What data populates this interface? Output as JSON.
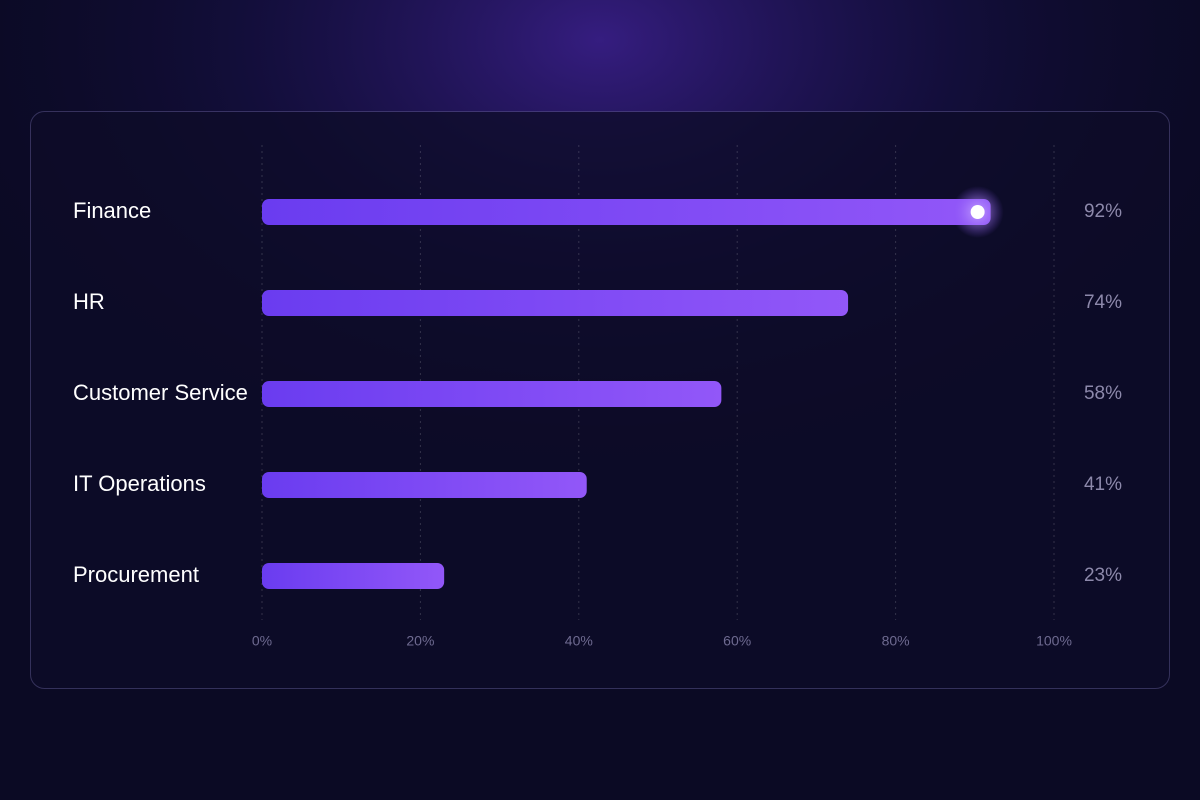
{
  "chart_data": {
    "type": "bar",
    "orientation": "horizontal",
    "categories": [
      "Finance",
      "HR",
      "Customer Service",
      "IT Operations",
      "Procurement"
    ],
    "values": [
      92,
      74,
      58,
      41,
      23
    ],
    "value_labels": [
      "92%",
      "74%",
      "58%",
      "41%",
      "23%"
    ],
    "color": "#7c4af4",
    "xlim": [
      0,
      100
    ],
    "xticks": [
      {
        "value": 0,
        "label": "0%"
      },
      {
        "value": 20,
        "label": "20%"
      },
      {
        "value": 40,
        "label": "40%"
      },
      {
        "value": 60,
        "label": "60%"
      },
      {
        "value": 80,
        "label": "80%"
      },
      {
        "value": 100,
        "label": "100%"
      }
    ],
    "grid": true
  }
}
